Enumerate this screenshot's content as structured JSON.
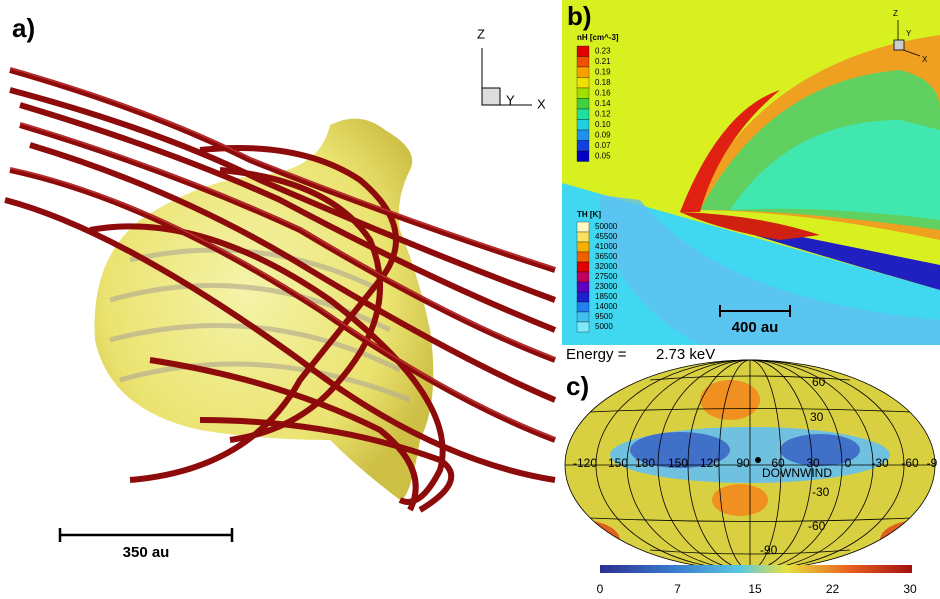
{
  "panel_a": {
    "label": "a)",
    "axes": {
      "z": "Z",
      "y": "Y",
      "x": "X"
    },
    "scale_bar": "350 au"
  },
  "panel_b": {
    "label": "b)",
    "axes": {
      "z": "Z",
      "y": "Y",
      "x": "X"
    },
    "nh_legend": {
      "title": "nH [cm^-3]",
      "levels": [
        "0.23",
        "0.21",
        "0.19",
        "0.18",
        "0.16",
        "0.14",
        "0.12",
        "0.10",
        "0.09",
        "0.07",
        "0.05"
      ]
    },
    "th_legend": {
      "title": "TH [K]",
      "levels": [
        "50000",
        "45500",
        "41000",
        "36500",
        "32000",
        "27500",
        "23000",
        "18500",
        "14000",
        "9500",
        "5000"
      ]
    },
    "scale_bar": "400 au"
  },
  "panel_c": {
    "label": "c)",
    "energy_label": "Energy =",
    "energy_value": "2.73 keV",
    "lat_labels": [
      "60",
      "30",
      "-30",
      "-60",
      "-90"
    ],
    "lon_labels": [
      "-120",
      "150",
      "180",
      "150",
      "120",
      "90",
      "60",
      "30",
      "0",
      "-30",
      "-60",
      "-9"
    ],
    "marker": "DOWNWIND",
    "colorbar_ticks": [
      "0",
      "7",
      "15",
      "22",
      "30"
    ]
  }
}
